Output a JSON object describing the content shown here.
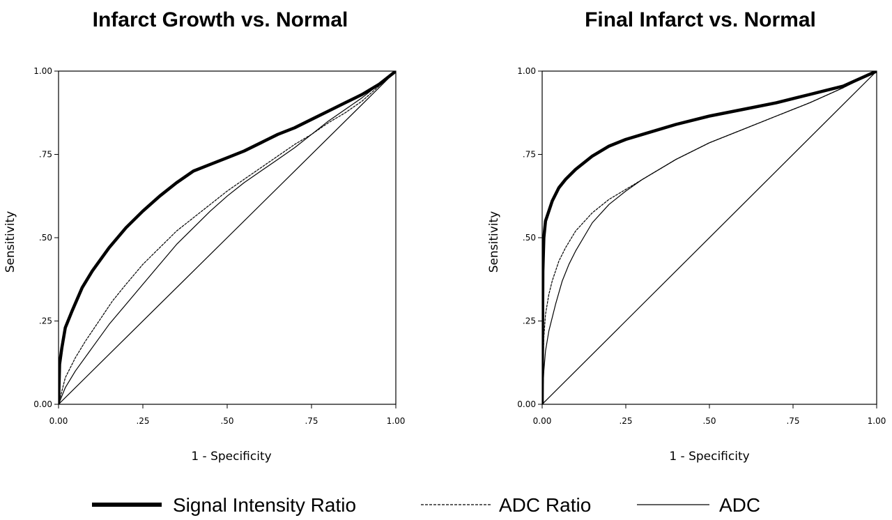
{
  "chart_data": [
    {
      "type": "line",
      "title": "Infarct Growth vs. Normal",
      "xlabel": "1 - Specificity",
      "ylabel": "Sensitivity",
      "xlim": [
        0,
        1
      ],
      "ylim": [
        0,
        1
      ],
      "x_ticks": [
        "0.00",
        ".25",
        ".50",
        ".75",
        "1.00"
      ],
      "y_ticks": [
        "0.00",
        ".25",
        ".50",
        ".75",
        "1.00"
      ],
      "grid": false,
      "series": [
        {
          "name": "Signal Intensity Ratio",
          "style": "thick",
          "x": [
            0,
            0.003,
            0.01,
            0.02,
            0.04,
            0.07,
            0.1,
            0.15,
            0.2,
            0.25,
            0.3,
            0.35,
            0.4,
            0.45,
            0.5,
            0.55,
            0.6,
            0.65,
            0.7,
            0.75,
            0.8,
            0.85,
            0.9,
            0.95,
            1.0
          ],
          "y": [
            0,
            0.12,
            0.17,
            0.23,
            0.28,
            0.35,
            0.4,
            0.47,
            0.53,
            0.58,
            0.625,
            0.665,
            0.7,
            0.72,
            0.74,
            0.76,
            0.785,
            0.81,
            0.83,
            0.855,
            0.88,
            0.905,
            0.93,
            0.96,
            1.0
          ]
        },
        {
          "name": "ADC Ratio",
          "style": "dashed",
          "x": [
            0,
            0.02,
            0.05,
            0.08,
            0.12,
            0.16,
            0.2,
            0.25,
            0.3,
            0.35,
            0.4,
            0.45,
            0.5,
            0.55,
            0.6,
            0.65,
            0.7,
            0.75,
            0.8,
            0.85,
            0.9,
            0.95,
            1.0
          ],
          "y": [
            0,
            0.08,
            0.14,
            0.19,
            0.25,
            0.31,
            0.36,
            0.42,
            0.47,
            0.52,
            0.56,
            0.6,
            0.64,
            0.675,
            0.71,
            0.745,
            0.78,
            0.81,
            0.845,
            0.875,
            0.91,
            0.955,
            1.0
          ]
        },
        {
          "name": "ADC",
          "style": "thin",
          "x": [
            0,
            0.02,
            0.05,
            0.1,
            0.15,
            0.2,
            0.25,
            0.3,
            0.35,
            0.4,
            0.45,
            0.5,
            0.55,
            0.6,
            0.65,
            0.7,
            0.75,
            0.8,
            0.85,
            0.9,
            0.95,
            1.0
          ],
          "y": [
            0,
            0.05,
            0.1,
            0.17,
            0.24,
            0.3,
            0.36,
            0.42,
            0.48,
            0.53,
            0.58,
            0.625,
            0.665,
            0.7,
            0.735,
            0.77,
            0.81,
            0.85,
            0.885,
            0.92,
            0.96,
            1.0
          ]
        },
        {
          "name": "",
          "style": "reference",
          "x": [
            0,
            1
          ],
          "y": [
            0,
            1
          ]
        }
      ]
    },
    {
      "type": "line",
      "title": "Final Infarct vs. Normal",
      "xlabel": "1 - Specificity",
      "ylabel": "Sensitivity",
      "xlim": [
        0,
        1
      ],
      "ylim": [
        0,
        1
      ],
      "x_ticks": [
        "0.00",
        ".25",
        ".50",
        ".75",
        "1.00"
      ],
      "y_ticks": [
        "0.00",
        ".25",
        ".50",
        ".75",
        "1.00"
      ],
      "grid": false,
      "series": [
        {
          "name": "Signal Intensity Ratio",
          "style": "thick",
          "x": [
            0,
            0.002,
            0.005,
            0.01,
            0.02,
            0.03,
            0.05,
            0.07,
            0.1,
            0.15,
            0.2,
            0.25,
            0.3,
            0.4,
            0.5,
            0.6,
            0.7,
            0.8,
            0.9,
            1.0
          ],
          "y": [
            0,
            0.4,
            0.5,
            0.55,
            0.58,
            0.61,
            0.65,
            0.675,
            0.705,
            0.745,
            0.775,
            0.795,
            0.81,
            0.84,
            0.865,
            0.885,
            0.905,
            0.93,
            0.955,
            1.0
          ]
        },
        {
          "name": "ADC Ratio",
          "style": "dashed",
          "x": [
            0,
            0.005,
            0.01,
            0.02,
            0.03,
            0.05,
            0.07,
            0.1,
            0.15,
            0.2,
            0.25,
            0.3,
            0.4,
            0.5,
            0.6,
            0.7,
            0.8,
            0.9,
            1.0
          ],
          "y": [
            0,
            0.2,
            0.27,
            0.33,
            0.37,
            0.43,
            0.47,
            0.52,
            0.575,
            0.615,
            0.645,
            0.675,
            0.735,
            0.785,
            0.825,
            0.865,
            0.905,
            0.95,
            1.0
          ]
        },
        {
          "name": "ADC",
          "style": "thin",
          "x": [
            0,
            0.005,
            0.01,
            0.02,
            0.04,
            0.06,
            0.08,
            0.1,
            0.15,
            0.2,
            0.25,
            0.3,
            0.4,
            0.5,
            0.6,
            0.7,
            0.8,
            0.9,
            1.0
          ],
          "y": [
            0,
            0.1,
            0.16,
            0.22,
            0.3,
            0.37,
            0.42,
            0.46,
            0.545,
            0.6,
            0.64,
            0.675,
            0.735,
            0.785,
            0.825,
            0.865,
            0.905,
            0.95,
            1.0
          ]
        },
        {
          "name": "",
          "style": "reference",
          "x": [
            0,
            1
          ],
          "y": [
            0,
            1
          ]
        }
      ]
    }
  ],
  "legend": {
    "placement": "bottom",
    "items": [
      {
        "label": "Signal Intensity Ratio",
        "style": "thick"
      },
      {
        "label": "ADC Ratio",
        "style": "dashed"
      },
      {
        "label": "ADC",
        "style": "thin"
      }
    ]
  }
}
